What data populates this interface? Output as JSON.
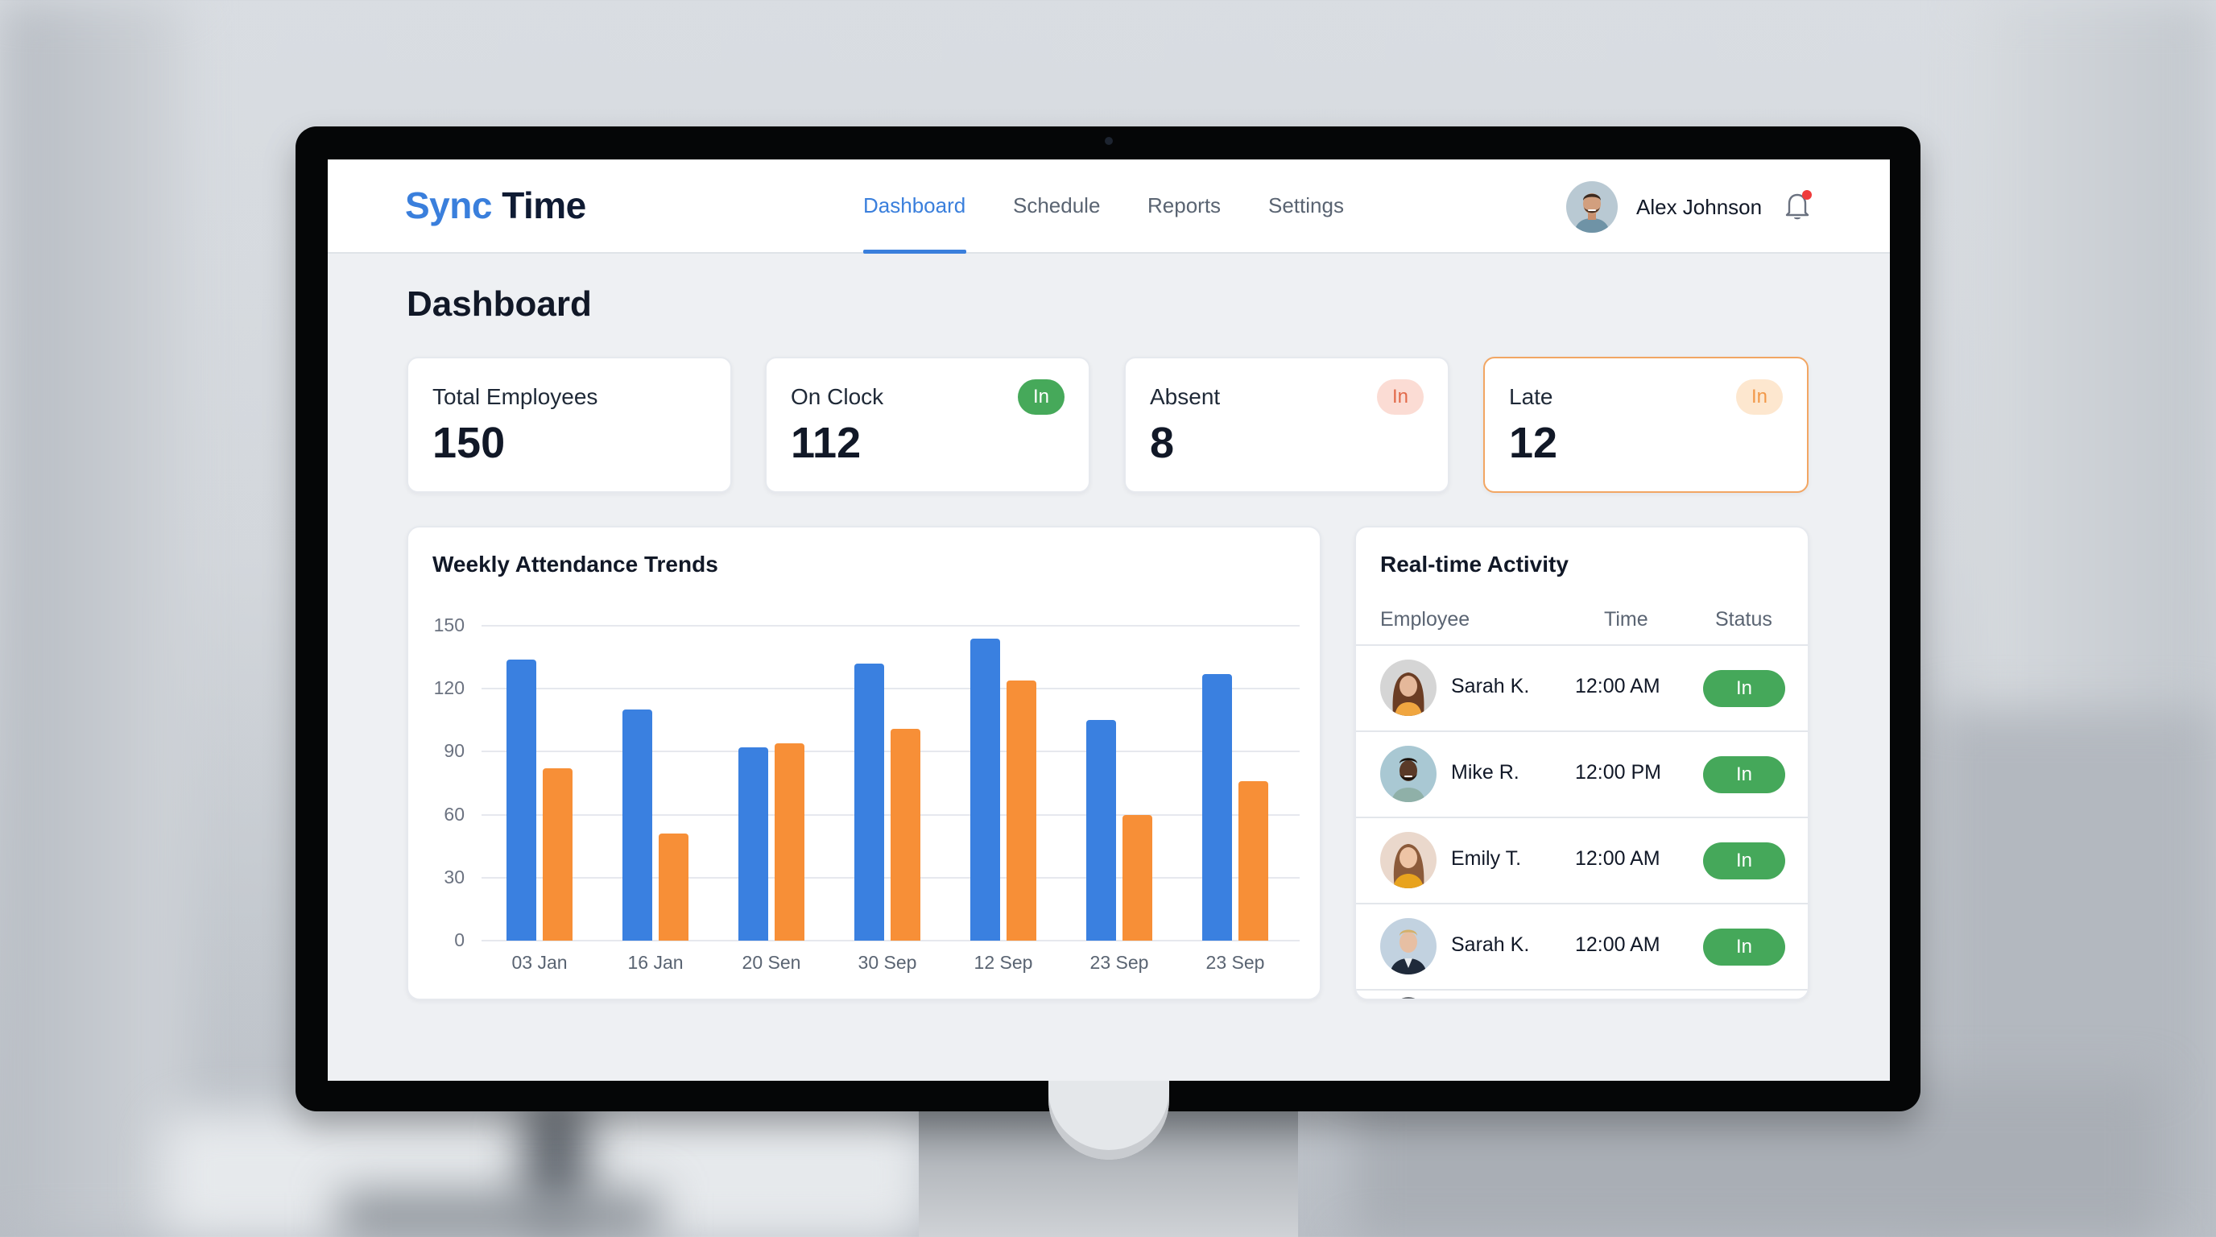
{
  "app": {
    "brand_part1": "Sync",
    "brand_part2": "Time"
  },
  "nav": {
    "items": [
      {
        "label": "Dashboard",
        "active": true
      },
      {
        "label": "Schedule",
        "active": false
      },
      {
        "label": "Reports",
        "active": false
      },
      {
        "label": "Settings",
        "active": false
      }
    ]
  },
  "user": {
    "name": "Alex Johnson",
    "avatar_icon": "user-avatar-man",
    "notification_icon": "bell-icon",
    "has_unread": true
  },
  "page": {
    "title": "Dashboard"
  },
  "stats": [
    {
      "label": "Total Employees",
      "value": "150",
      "badge": null
    },
    {
      "label": "On Clock",
      "value": "112",
      "badge": "In",
      "badge_bg": "#46a95a",
      "badge_fg": "#ffffff"
    },
    {
      "label": "Absent",
      "value": "8",
      "badge": "In",
      "badge_bg": "#fbdcd4",
      "badge_fg": "#e26a4a"
    },
    {
      "label": "Late",
      "value": "12",
      "badge": "In",
      "badge_bg": "#fde7cf",
      "badge_fg": "#f2994a",
      "highlight": true
    }
  ],
  "chart": {
    "title": "Weekly Attendance Trends"
  },
  "chart_data": {
    "type": "bar",
    "title": "Weekly Attendance Trends",
    "categories": [
      "03 Jan",
      "16 Jan",
      "20 Sen",
      "30 Sep",
      "12 Sep",
      "23 Sep",
      "23 Sep"
    ],
    "series": [
      {
        "name": "Series 1 (blue)",
        "color": "#3a80e0",
        "values": [
          134,
          110,
          92,
          132,
          144,
          105,
          127
        ]
      },
      {
        "name": "Series 2 (orange)",
        "color": "#f78f37",
        "values": [
          82,
          51,
          94,
          101,
          124,
          60,
          76
        ]
      }
    ],
    "yticks": [
      0,
      30,
      60,
      90,
      120,
      150
    ],
    "ylim": [
      0,
      150
    ],
    "xlabel": "",
    "ylabel": "",
    "grid": true,
    "legend": "none"
  },
  "activity": {
    "title": "Real-time Activity",
    "columns": [
      "Employee",
      "Time",
      "Status"
    ],
    "rows": [
      {
        "name": "Sarah K.",
        "time": "12:00 AM",
        "status": "In",
        "avatar": "woman-brown-hair"
      },
      {
        "name": "Mike R.",
        "time": "12:00 PM",
        "status": "In",
        "avatar": "man-beard"
      },
      {
        "name": "Emily T.",
        "time": "12:00 AM",
        "status": "In",
        "avatar": "woman-long-hair"
      },
      {
        "name": "Sarah K.",
        "time": "12:00 AM",
        "status": "In",
        "avatar": "man-blond-suit"
      }
    ]
  },
  "colors": {
    "accent": "#3a7fdc",
    "success": "#45a85a",
    "warning": "#f2a663",
    "bar_blue": "#3a80e0",
    "bar_orange": "#f78f37"
  }
}
